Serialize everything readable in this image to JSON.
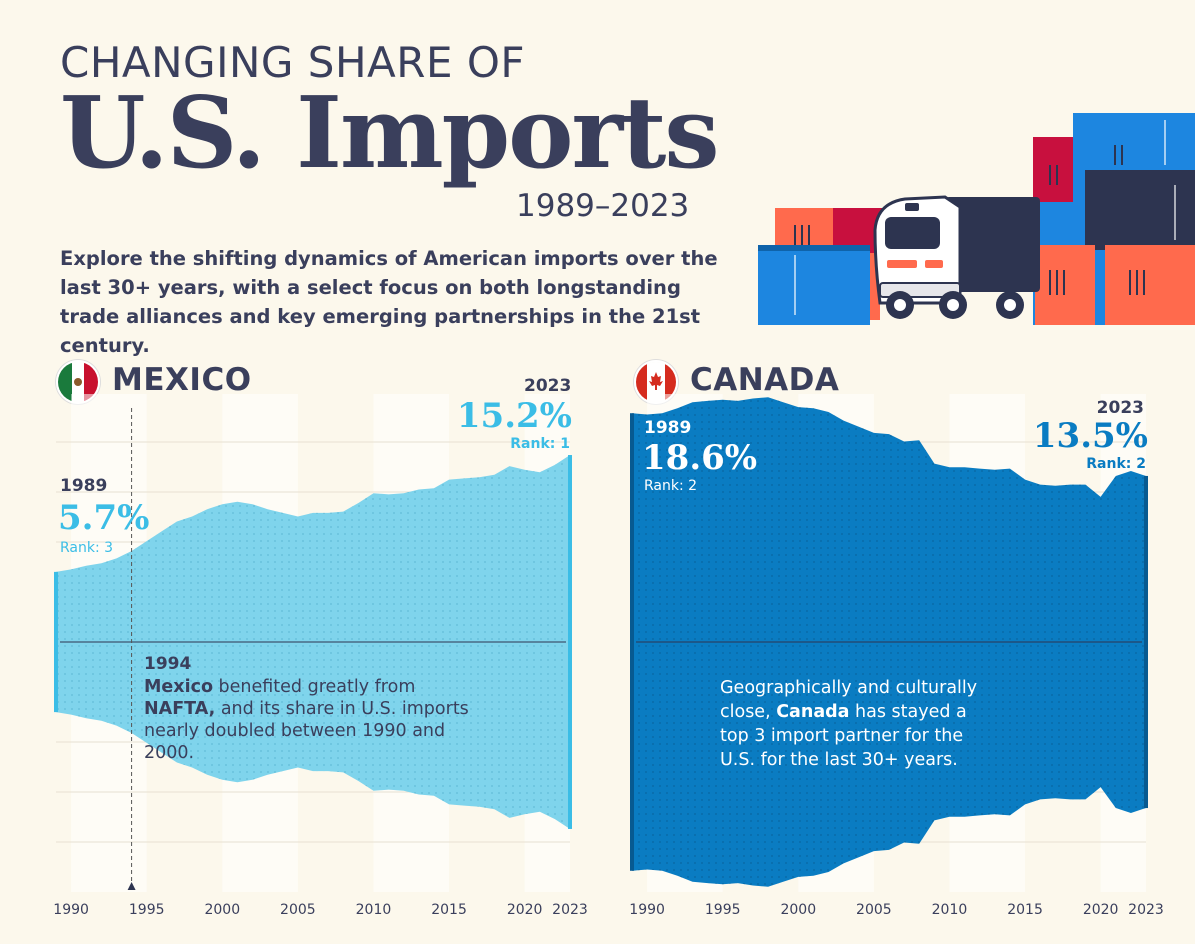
{
  "header": {
    "line1": "CHANGING SHARE OF",
    "line2": "U.S. Imports",
    "years": "1989–2023",
    "intro": "Explore the shifting dynamics of American imports over the last 30+ years, with a select focus on both longstanding trade alliances and key emerging partnerships in the 21st century."
  },
  "colors": {
    "background": "#fcf8ec",
    "text": "#3a3f5c",
    "mexico": "#7fd4ec",
    "mexico_accent": "#3bbde6",
    "canada": "#0a7cc2",
    "canada_dark": "#075a91",
    "stripe": "#f3ede0"
  },
  "chart_data": [
    {
      "type": "area",
      "title": "MEXICO",
      "flag_icon": "mexico-flag-icon",
      "x": [
        1989,
        1990,
        1991,
        1992,
        1993,
        1994,
        1995,
        1996,
        1997,
        1998,
        1999,
        2000,
        2001,
        2002,
        2003,
        2004,
        2005,
        2006,
        2007,
        2008,
        2009,
        2010,
        2011,
        2012,
        2013,
        2014,
        2015,
        2016,
        2017,
        2018,
        2019,
        2020,
        2021,
        2022,
        2023
      ],
      "values": [
        5.7,
        5.9,
        6.2,
        6.4,
        6.8,
        7.4,
        8.2,
        9.0,
        9.8,
        10.2,
        10.8,
        11.2,
        11.4,
        11.2,
        10.8,
        10.5,
        10.2,
        10.5,
        10.5,
        10.6,
        11.3,
        12.1,
        12.0,
        12.1,
        12.4,
        12.5,
        13.2,
        13.3,
        13.4,
        13.6,
        14.3,
        14.0,
        13.8,
        14.4,
        15.2
      ],
      "annotations": {
        "start_year": "1989",
        "start_value": "5.7%",
        "start_rank": "Rank: 3",
        "end_year": "2023",
        "end_value": "15.2%",
        "end_rank": "Rank: 1",
        "event_year": "1994",
        "event_text_parts": [
          "Mexico",
          " benefited greatly from ",
          "NAFTA,",
          " and its share in U.S. imports nearly doubled between 1990 and 2000."
        ]
      },
      "x_ticks": [
        "1990",
        "1995",
        "2000",
        "2005",
        "2010",
        "2015",
        "2020",
        "2023"
      ],
      "xlabel": "",
      "ylabel": ""
    },
    {
      "type": "area",
      "title": "CANADA",
      "flag_icon": "canada-flag-icon",
      "x": [
        1989,
        1990,
        1991,
        1992,
        1993,
        1994,
        1995,
        1996,
        1997,
        1998,
        1999,
        2000,
        2001,
        2002,
        2003,
        2004,
        2005,
        2006,
        2007,
        2008,
        2009,
        2010,
        2011,
        2012,
        2013,
        2014,
        2015,
        2016,
        2017,
        2018,
        2019,
        2020,
        2021,
        2022,
        2023
      ],
      "values": [
        18.6,
        18.5,
        18.6,
        19.0,
        19.5,
        19.6,
        19.7,
        19.6,
        19.8,
        19.9,
        19.5,
        19.1,
        19.0,
        18.7,
        18.0,
        17.5,
        17.0,
        16.9,
        16.3,
        16.4,
        14.5,
        14.2,
        14.2,
        14.1,
        14.0,
        14.1,
        13.2,
        12.8,
        12.7,
        12.8,
        12.8,
        11.8,
        13.5,
        13.9,
        13.5
      ],
      "annotations": {
        "start_year": "1989",
        "start_value": "18.6%",
        "start_rank": "Rank: 2",
        "end_year": "2023",
        "end_value": "13.5%",
        "end_rank": "Rank: 2",
        "note_parts": [
          "Geographically and culturally close, ",
          "Canada",
          " has stayed a top 3 import partner for the U.S. for the last 30+ years."
        ]
      },
      "x_ticks": [
        "1990",
        "1995",
        "2000",
        "2005",
        "2010",
        "2015",
        "2020",
        "2023"
      ],
      "xlabel": "",
      "ylabel": ""
    }
  ]
}
